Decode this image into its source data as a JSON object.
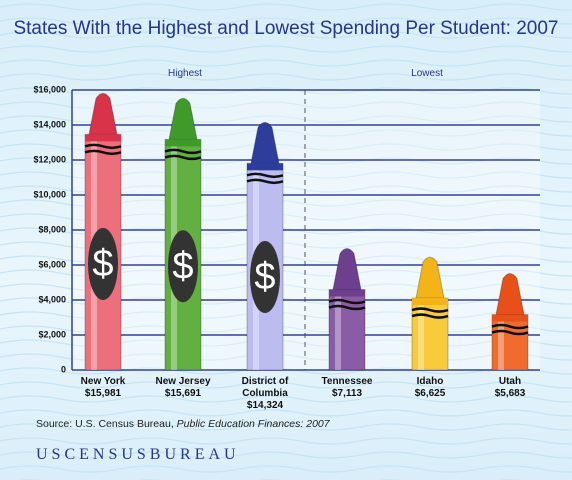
{
  "chart_data": {
    "type": "crayon-bar",
    "title": "States With the Highest and Lowest Spending Per Student: 2007",
    "group_labels": [
      "Highest",
      "Lowest"
    ],
    "categories": [
      "New York",
      "New Jersey",
      "District of Columbia",
      "Tennessee",
      "Idaho",
      "Utah"
    ],
    "values": [
      15981,
      15691,
      14324,
      7113,
      6625,
      5683
    ],
    "value_labels": [
      "$15,981",
      "$15,691",
      "$14,324",
      "$7,113",
      "$6,625",
      "$5,683"
    ],
    "colors": [
      "#ee6f7c",
      "#62b03f",
      "#bcbcf0",
      "#8a5ca6",
      "#f7cb3a",
      "#f26b2e"
    ],
    "tip_colors": [
      "#d83348",
      "#3f9a2a",
      "#2e3d9c",
      "#6d3f8c",
      "#f2b417",
      "#e8501a"
    ],
    "badge_text": "$",
    "ylim": [
      0,
      16000
    ],
    "yticks": [
      0,
      {
        "value": 2000,
        "label": "$2,000"
      },
      {
        "value": 4000,
        "label": "$4,000"
      },
      {
        "value": 6000,
        "label": "$6,000"
      },
      {
        "value": 8000,
        "label": "$8,000"
      },
      {
        "value": 10000,
        "label": "$10,000"
      },
      {
        "value": 12000,
        "label": "$12,000"
      },
      {
        "value": 14000,
        "label": "$14,000"
      },
      {
        "value": 16000,
        "label": "$16,000"
      }
    ],
    "grid": true,
    "source_prefix": "Source: U.S. Census Bureau, ",
    "source_title": "Public Education Finances: 2007",
    "footer": "USCENSUSBUREAU"
  }
}
